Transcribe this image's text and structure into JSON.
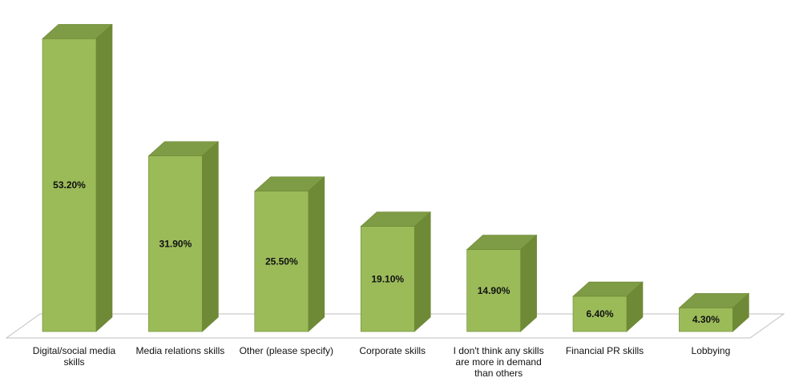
{
  "chart_data": {
    "type": "bar",
    "categories": [
      "Digital/social media skills",
      "Media relations skills",
      "Other (please specify)",
      "Corporate skills",
      "I don't think any skills are more in demand than others",
      "Financial PR skills",
      "Lobbying"
    ],
    "category_lines": [
      [
        "Digital/social media",
        "skills"
      ],
      [
        "Media relations skills"
      ],
      [
        "Other (please specify)"
      ],
      [
        "Corporate skills"
      ],
      [
        "I don't think any skills",
        "are more in demand",
        "than others"
      ],
      [
        "Financial PR skills"
      ],
      [
        "Lobbying"
      ]
    ],
    "values": [
      53.2,
      31.9,
      25.5,
      19.1,
      14.9,
      6.4,
      4.3
    ],
    "data_labels": [
      "53.20%",
      "31.90%",
      "25.50%",
      "19.10%",
      "14.90%",
      "6.40%",
      "4.30%"
    ],
    "title": "",
    "xlabel": "",
    "ylabel": "",
    "ylim": [
      0,
      55
    ],
    "grid": false,
    "legend": "none",
    "style": "3d-column",
    "colors": {
      "bar_front": "#9BBB59",
      "bar_side": "#6F8A37",
      "bar_top": "#7E9B45",
      "bar_edge": "#6A8533",
      "floor_stroke": "#bfbfbf"
    }
  }
}
